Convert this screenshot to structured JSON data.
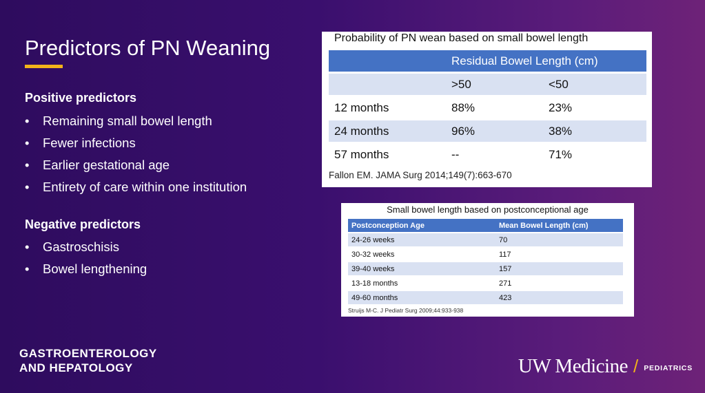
{
  "slide": {
    "title": "Predictors of PN Weaning",
    "positive_heading": "Positive predictors",
    "positive_items": [
      "Remaining small bowel length",
      "Fewer infections",
      "Earlier gestational age",
      "Entirety of care within one institution"
    ],
    "negative_heading": "Negative predictors",
    "negative_items": [
      "Gastroschisis",
      "Bowel lengthening"
    ],
    "bullet_glyph": "•"
  },
  "table1": {
    "caption": "Probability of PN wean based on small bowel length",
    "group_header": "Residual Bowel Length (cm)",
    "subheaders": [
      ">50",
      "<50"
    ],
    "rows": [
      {
        "label": "12 months",
        "a": "88%",
        "b": "23%"
      },
      {
        "label": "24 months",
        "a": "96%",
        "b": "38%"
      },
      {
        "label": "57 months",
        "a": "--",
        "b": "71%"
      }
    ],
    "citation": "Fallon EM. JAMA Surg 2014;149(7):663-670"
  },
  "table2": {
    "caption": "Small bowel length based on postconceptional age",
    "headers": [
      "Postconception Age",
      "Mean Bowel Length (cm)"
    ],
    "rows": [
      [
        "24-26 weeks",
        "70"
      ],
      [
        "30-32 weeks",
        "117"
      ],
      [
        "39-40 weeks",
        "157"
      ],
      [
        "13-18 months",
        "271"
      ],
      [
        "49-60 months",
        "423"
      ]
    ],
    "citation": "Struijs M-C. J Pediatr Surg 2009;44:933-938"
  },
  "footer": {
    "dept_line1": "GASTROENTEROLOGY",
    "dept_line2": "AND HEPATOLOGY",
    "logo_main": "UW Medicine",
    "logo_slash": "/",
    "logo_sub": "PEDIATRICS"
  },
  "colors": {
    "accent": "#f2b31a",
    "table_header": "#4472c4",
    "table_alt_row": "#d9e1f2"
  }
}
